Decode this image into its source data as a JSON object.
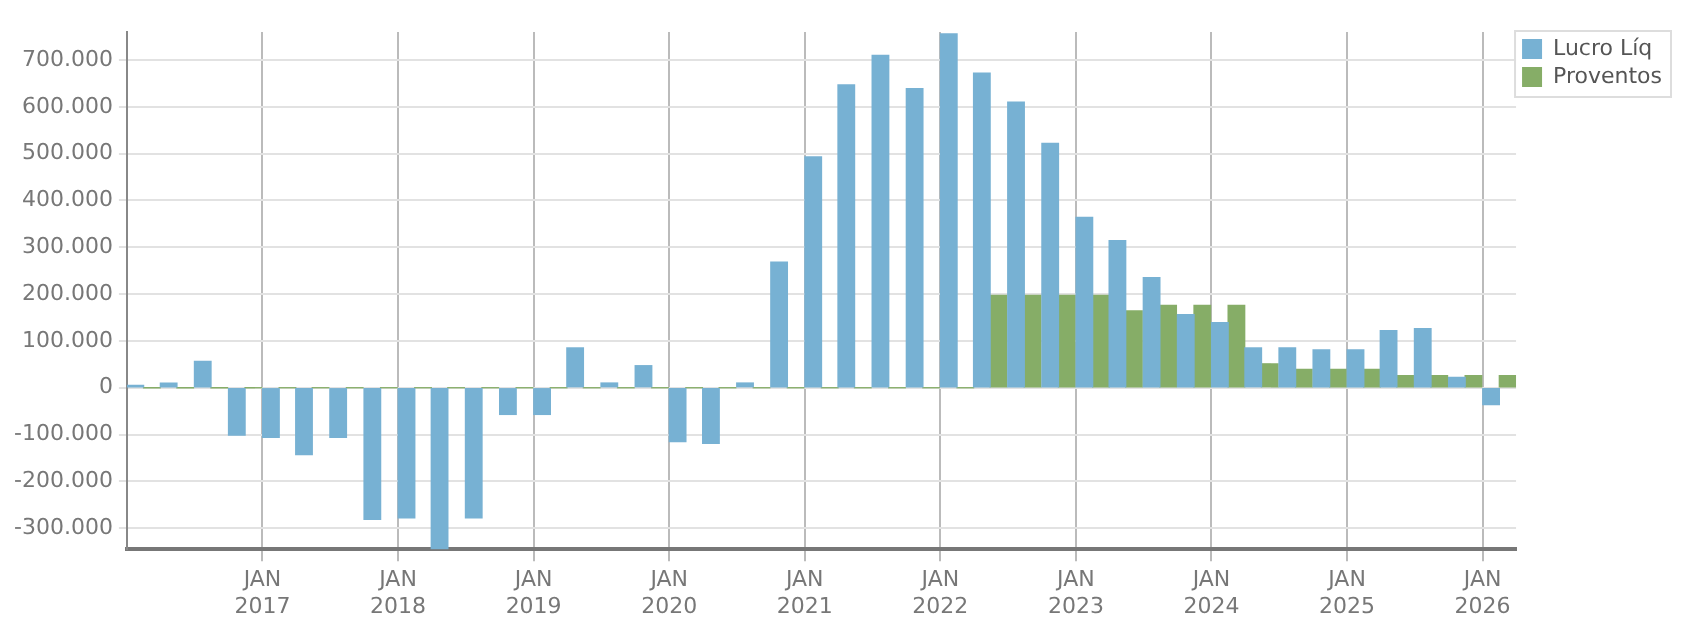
{
  "chart_data": {
    "type": "bar",
    "x": [
      "2016-02-15",
      "2016-05-15",
      "2016-08-15",
      "2016-11-15",
      "2017-02-15",
      "2017-05-15",
      "2017-08-15",
      "2017-11-15",
      "2018-02-15",
      "2018-05-15",
      "2018-08-15",
      "2018-11-15",
      "2019-02-15",
      "2019-05-15",
      "2019-08-15",
      "2019-11-15",
      "2020-02-15",
      "2020-05-15",
      "2020-08-15",
      "2020-11-15",
      "2021-02-15",
      "2021-05-15",
      "2021-08-15",
      "2021-11-15",
      "2022-02-15",
      "2022-05-15",
      "2022-08-15",
      "2022-11-15",
      "2023-02-15",
      "2023-05-15",
      "2023-08-15",
      "2023-11-15",
      "2024-02-15",
      "2024-05-15",
      "2024-08-15",
      "2024-11-15",
      "2025-02-15",
      "2025-05-15",
      "2025-08-15",
      "2025-11-15",
      "2026-02-15"
    ],
    "series": [
      {
        "name": "Lucro Líq",
        "color": "#77b1d3",
        "values": [
          5000,
          10000,
          56000,
          -101000,
          -106000,
          -143000,
          -106000,
          -281000,
          -278000,
          -345000,
          -278000,
          -57000,
          -57000,
          85000,
          10000,
          47000,
          -115000,
          -119000,
          10000,
          268000,
          493000,
          647000,
          710000,
          639000,
          756000,
          672000,
          610000,
          522000,
          364000,
          314000,
          235000,
          156000,
          139000,
          85000,
          85000,
          81000,
          81000,
          122000,
          126000,
          22000,
          -36000
        ]
      },
      {
        "name": "Proventos",
        "color": "#86ad67",
        "values": [
          0,
          0,
          0,
          0,
          0,
          0,
          0,
          0,
          0,
          0,
          0,
          0,
          0,
          0,
          0,
          0,
          0,
          0,
          0,
          0,
          0,
          0,
          0,
          0,
          0,
          197000,
          197000,
          197000,
          197000,
          164000,
          176000,
          176000,
          176000,
          51000,
          39000,
          39000,
          39000,
          26000,
          26000,
          26000,
          26000
        ]
      }
    ],
    "xlim": [
      "2016-01-01",
      "2026-04-01"
    ],
    "xticks": [
      {
        "value": "2017-01-01",
        "label": "JAN 2017"
      },
      {
        "value": "2018-01-01",
        "label": "JAN 2018"
      },
      {
        "value": "2019-01-01",
        "label": "JAN 2019"
      },
      {
        "value": "2020-01-01",
        "label": "JAN 2020"
      },
      {
        "value": "2021-01-01",
        "label": "JAN 2021"
      },
      {
        "value": "2022-01-01",
        "label": "JAN 2022"
      },
      {
        "value": "2023-01-01",
        "label": "JAN 2023"
      },
      {
        "value": "2024-01-01",
        "label": "JAN 2024"
      },
      {
        "value": "2025-01-01",
        "label": "JAN 2025"
      },
      {
        "value": "2026-01-01",
        "label": "JAN 2026"
      }
    ],
    "ylim": [
      -345000,
      760000
    ],
    "yticks": [
      {
        "value": -300000,
        "label": "-300.000"
      },
      {
        "value": -200000,
        "label": "-200.000"
      },
      {
        "value": -100000,
        "label": "-100.000"
      },
      {
        "value": 0,
        "label": "0"
      },
      {
        "value": 100000,
        "label": "100.000"
      },
      {
        "value": 200000,
        "label": "200.000"
      },
      {
        "value": 300000,
        "label": "300.000"
      },
      {
        "value": 400000,
        "label": "400.000"
      },
      {
        "value": 500000,
        "label": "500.000"
      },
      {
        "value": 600000,
        "label": "600.000"
      },
      {
        "value": 700000,
        "label": "700.000"
      }
    ],
    "grid": true,
    "legend": "top right"
  }
}
